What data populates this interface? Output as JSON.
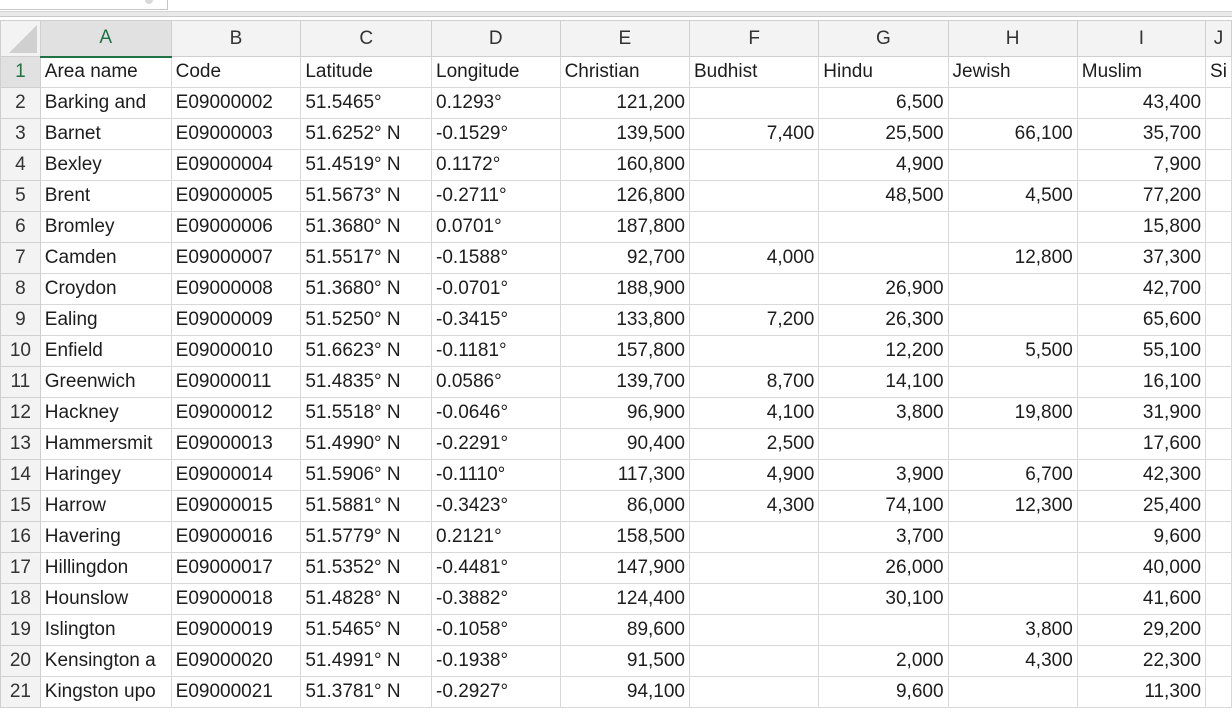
{
  "app": {
    "active_column": "A",
    "active_row": "1"
  },
  "columns": [
    "A",
    "B",
    "C",
    "D",
    "E",
    "F",
    "G",
    "H",
    "I",
    "J"
  ],
  "rows": [
    {
      "n": "1",
      "cells": [
        "Area name",
        "Code",
        "Latitude",
        "Longitude",
        "Christian",
        "Budhist",
        "Hindu",
        "Jewish",
        "Muslim",
        "Si"
      ]
    },
    {
      "n": "2",
      "cells": [
        "Barking and",
        "E09000002",
        "51.5465°",
        "0.1293°",
        "121,200",
        "",
        "6,500",
        "",
        "43,400",
        ""
      ]
    },
    {
      "n": "3",
      "cells": [
        "Barnet",
        "E09000003",
        "51.6252° N",
        "-0.1529°",
        "139,500",
        "7,400",
        "25,500",
        "66,100",
        "35,700",
        ""
      ]
    },
    {
      "n": "4",
      "cells": [
        "Bexley",
        "E09000004",
        "51.4519° N",
        "0.1172°",
        "160,800",
        "",
        "4,900",
        "",
        "7,900",
        ""
      ]
    },
    {
      "n": "5",
      "cells": [
        "Brent",
        "E09000005",
        "51.5673° N",
        "-0.2711°",
        "126,800",
        "",
        "48,500",
        "4,500",
        "77,200",
        ""
      ]
    },
    {
      "n": "6",
      "cells": [
        "Bromley",
        "E09000006",
        "51.3680° N",
        "0.0701°",
        "187,800",
        "",
        "",
        "",
        "15,800",
        ""
      ]
    },
    {
      "n": "7",
      "cells": [
        "Camden",
        "E09000007",
        "51.5517° N",
        "-0.1588°",
        "92,700",
        "4,000",
        "",
        "12,800",
        "37,300",
        ""
      ]
    },
    {
      "n": "8",
      "cells": [
        "Croydon",
        "E09000008",
        "51.3680° N",
        "-0.0701°",
        "188,900",
        "",
        "26,900",
        "",
        "42,700",
        ""
      ]
    },
    {
      "n": "9",
      "cells": [
        "Ealing",
        "E09000009",
        "51.5250° N",
        "-0.3415°",
        "133,800",
        "7,200",
        "26,300",
        "",
        "65,600",
        ""
      ]
    },
    {
      "n": "10",
      "cells": [
        "Enfield",
        "E09000010",
        "51.6623° N",
        "-0.1181°",
        "157,800",
        "",
        "12,200",
        "5,500",
        "55,100",
        ""
      ]
    },
    {
      "n": "11",
      "cells": [
        "Greenwich",
        "E09000011",
        "51.4835° N",
        "0.0586°",
        "139,700",
        "8,700",
        "14,100",
        "",
        "16,100",
        ""
      ]
    },
    {
      "n": "12",
      "cells": [
        "Hackney",
        "E09000012",
        "51.5518° N",
        "-0.0646°",
        "96,900",
        "4,100",
        "3,800",
        "19,800",
        "31,900",
        ""
      ]
    },
    {
      "n": "13",
      "cells": [
        "Hammersmit",
        "E09000013",
        "51.4990° N",
        "-0.2291°",
        "90,400",
        "2,500",
        "",
        "",
        "17,600",
        ""
      ]
    },
    {
      "n": "14",
      "cells": [
        "Haringey",
        "E09000014",
        "51.5906° N",
        "-0.1110°",
        "117,300",
        "4,900",
        "3,900",
        "6,700",
        "42,300",
        ""
      ]
    },
    {
      "n": "15",
      "cells": [
        "Harrow",
        "E09000015",
        "51.5881° N",
        "-0.3423°",
        "86,000",
        "4,300",
        "74,100",
        "12,300",
        "25,400",
        ""
      ]
    },
    {
      "n": "16",
      "cells": [
        "Havering",
        "E09000016",
        "51.5779° N",
        "0.2121°",
        "158,500",
        "",
        "3,700",
        "",
        "9,600",
        ""
      ]
    },
    {
      "n": "17",
      "cells": [
        "Hillingdon",
        "E09000017",
        "51.5352° N",
        "-0.4481°",
        "147,900",
        "",
        "26,000",
        "",
        "40,000",
        ""
      ]
    },
    {
      "n": "18",
      "cells": [
        "Hounslow",
        "E09000018",
        "51.4828° N",
        "-0.3882°",
        "124,400",
        "",
        "30,100",
        "",
        "41,600",
        ""
      ]
    },
    {
      "n": "19",
      "cells": [
        "Islington",
        "E09000019",
        "51.5465° N",
        "-0.1058°",
        "89,600",
        "",
        "",
        "3,800",
        "29,200",
        ""
      ]
    },
    {
      "n": "20",
      "cells": [
        "Kensington a",
        "E09000020",
        "51.4991° N",
        "-0.1938°",
        "91,500",
        "",
        "2,000",
        "4,300",
        "22,300",
        ""
      ]
    },
    {
      "n": "21",
      "cells": [
        "Kingston upo",
        "E09000021",
        "51.3781° N",
        "-0.2927°",
        "94,100",
        "",
        "9,600",
        "",
        "11,300",
        ""
      ]
    }
  ]
}
